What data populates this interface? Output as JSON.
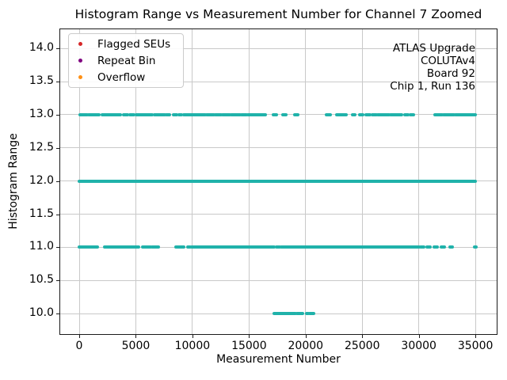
{
  "chart_data": {
    "type": "scatter",
    "title": "Histogram Range vs Measurement Number for Channel 7 Zoomed",
    "xlabel": "Measurement Number",
    "ylabel": "Histogram Range",
    "xlim": [
      -1750,
      36950
    ],
    "ylim": [
      9.68,
      14.3
    ],
    "xticks": [
      {
        "v": 0,
        "label": "0"
      },
      {
        "v": 5000,
        "label": "5000"
      },
      {
        "v": 10000,
        "label": "10000"
      },
      {
        "v": 15000,
        "label": "15000"
      },
      {
        "v": 20000,
        "label": "20000"
      },
      {
        "v": 25000,
        "label": "25000"
      },
      {
        "v": 30000,
        "label": "30000"
      },
      {
        "v": 35000,
        "label": "35000"
      }
    ],
    "yticks": [
      {
        "v": 10.0,
        "label": "10.0"
      },
      {
        "v": 10.5,
        "label": "10.5"
      },
      {
        "v": 11.0,
        "label": "11.0"
      },
      {
        "v": 11.5,
        "label": "11.5"
      },
      {
        "v": 12.0,
        "label": "12.0"
      },
      {
        "v": 12.5,
        "label": "12.5"
      },
      {
        "v": 13.0,
        "label": "13.0"
      },
      {
        "v": 13.5,
        "label": "13.5"
      },
      {
        "v": 14.0,
        "label": "14.0"
      }
    ],
    "grid": true,
    "grid_color": "#c9c9c9",
    "point_color": "#20B2AA",
    "legend": {
      "position": "upper-left",
      "entries": [
        {
          "label": "Flagged SEUs",
          "color": "#d62728"
        },
        {
          "label": "Repeat Bin",
          "color": "#800080"
        },
        {
          "label": "Overflow",
          "color": "#ff9015"
        }
      ]
    },
    "annotation": {
      "align": "right",
      "lines": [
        "ATLAS Upgrade",
        "COLUTAv4",
        "Board 92",
        "Chip 1, Run 136"
      ]
    },
    "series": [
      {
        "name": "histogram-range-13",
        "y": 13,
        "segments": [
          [
            70,
            700
          ],
          [
            860,
            1750
          ],
          [
            2050,
            3620
          ],
          [
            3900,
            4270
          ],
          [
            4460,
            4830
          ],
          [
            5060,
            6420
          ],
          [
            6650,
            7540
          ],
          [
            7680,
            8000
          ],
          [
            8330,
            8610
          ],
          [
            8800,
            9030
          ],
          [
            9220,
            11100
          ],
          [
            11250,
            11900
          ],
          [
            12050,
            12500
          ],
          [
            12650,
            13300
          ],
          [
            13450,
            14200
          ],
          [
            14350,
            14750
          ],
          [
            14900,
            16450
          ],
          [
            17150,
            17400
          ],
          [
            17990,
            18250
          ],
          [
            19050,
            19300
          ],
          [
            21850,
            22150
          ],
          [
            22750,
            23550
          ],
          [
            24150,
            24360
          ],
          [
            24750,
            25060
          ],
          [
            25340,
            25690
          ],
          [
            25900,
            26250
          ],
          [
            26400,
            27350
          ],
          [
            27500,
            28500
          ],
          [
            28750,
            29050
          ],
          [
            29250,
            29500
          ],
          [
            31400,
            32050
          ],
          [
            32200,
            33100
          ],
          [
            33250,
            35000
          ]
        ]
      },
      {
        "name": "histogram-range-12",
        "y": 12,
        "segments": [
          [
            0,
            35000
          ]
        ]
      },
      {
        "name": "histogram-range-11",
        "y": 11,
        "segments": [
          [
            0,
            700
          ],
          [
            800,
            1610
          ],
          [
            2240,
            5250
          ],
          [
            5600,
            6300
          ],
          [
            6450,
            7000
          ],
          [
            8550,
            9250
          ],
          [
            9600,
            9800
          ],
          [
            9950,
            17250
          ],
          [
            17400,
            17700
          ],
          [
            17850,
            30000
          ],
          [
            30150,
            30450
          ],
          [
            30750,
            31000
          ],
          [
            31350,
            31600
          ],
          [
            31950,
            32250
          ],
          [
            32750,
            32950
          ],
          [
            34900,
            35080
          ]
        ]
      },
      {
        "name": "histogram-range-10",
        "y": 10,
        "segments": [
          [
            17250,
            18250
          ],
          [
            18350,
            19100
          ],
          [
            19250,
            19750
          ],
          [
            20050,
            20200
          ],
          [
            20380,
            20520
          ],
          [
            20600,
            20720
          ]
        ]
      }
    ]
  }
}
